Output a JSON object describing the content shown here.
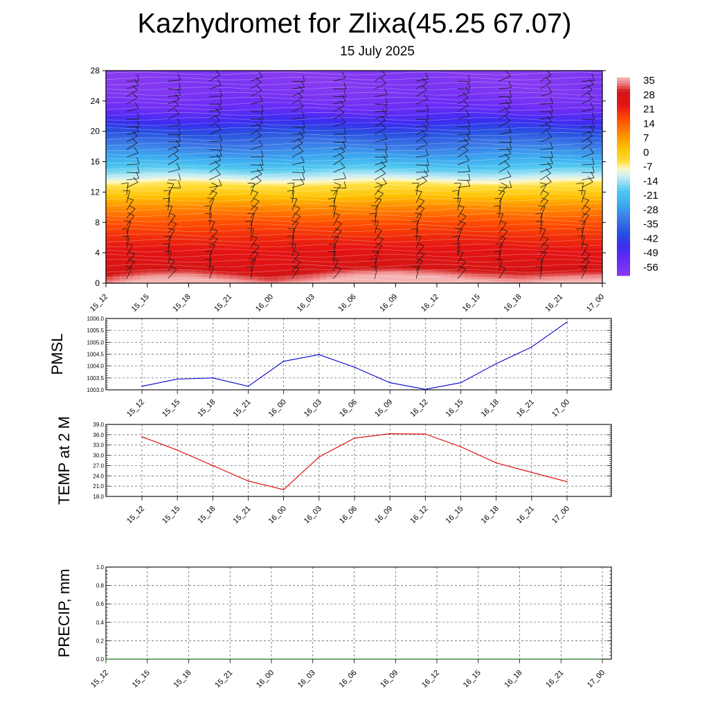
{
  "header": {
    "title": "Kazhydromet for Zlixa(45.25 67.07)",
    "subtitle": "15 July 2025"
  },
  "chart_data": [
    {
      "type": "heatmap",
      "name": "cross-section",
      "x_ticks": [
        "15_12",
        "15_15",
        "15_18",
        "15_21",
        "16_00",
        "16_03",
        "16_06",
        "16_09",
        "16_12",
        "16_15",
        "16_18",
        "16_21",
        "17_00"
      ],
      "y_ticks": [
        0,
        4,
        8,
        12,
        16,
        20,
        24,
        28
      ],
      "ylim": [
        0,
        28
      ],
      "colorbar": {
        "labels": [
          35,
          28,
          21,
          14,
          7,
          0,
          -7,
          -14,
          -21,
          -28,
          -35,
          -42,
          -49,
          -56
        ],
        "vmin": -63,
        "vmax": 35
      },
      "color_stops": [
        {
          "v": -63,
          "c": "#8a3cf0"
        },
        {
          "v": -56,
          "c": "#6a2cf5"
        },
        {
          "v": -49,
          "c": "#3c2cf0"
        },
        {
          "v": -42,
          "c": "#2850e0"
        },
        {
          "v": -35,
          "c": "#3c78e6"
        },
        {
          "v": -28,
          "c": "#3ca8f0"
        },
        {
          "v": -21,
          "c": "#50c8f0"
        },
        {
          "v": -14,
          "c": "#c8eef5"
        },
        {
          "v": -10,
          "c": "#fff8c8"
        },
        {
          "v": -7,
          "c": "#ffe040"
        },
        {
          "v": 0,
          "c": "#ffc000"
        },
        {
          "v": 7,
          "c": "#ff8c00"
        },
        {
          "v": 14,
          "c": "#ff5000"
        },
        {
          "v": 21,
          "c": "#e61414"
        },
        {
          "v": 28,
          "c": "#d21414"
        },
        {
          "v": 32,
          "c": "#ee8080"
        },
        {
          "v": 35,
          "c": "#f5b4b4"
        }
      ],
      "temperature_profile": [
        {
          "height": 0,
          "value": 32
        },
        {
          "height": 2,
          "value": 24
        },
        {
          "height": 4,
          "value": 21
        },
        {
          "height": 6,
          "value": 18
        },
        {
          "height": 8,
          "value": 14
        },
        {
          "height": 10,
          "value": 7
        },
        {
          "height": 12,
          "value": -3
        },
        {
          "height": 13.3,
          "value": -9
        },
        {
          "height": 14,
          "value": -14
        },
        {
          "height": 15,
          "value": -20
        },
        {
          "height": 16.5,
          "value": -28
        },
        {
          "height": 19,
          "value": -38
        },
        {
          "height": 21.5,
          "value": -50
        },
        {
          "height": 23,
          "value": -56
        },
        {
          "height": 25,
          "value": -60
        },
        {
          "height": 28,
          "value": -62
        }
      ],
      "surface_warm_boost": [
        0,
        6,
        8,
        4,
        0,
        3,
        9,
        12,
        10,
        5,
        2,
        4,
        6
      ]
    },
    {
      "type": "line",
      "name": "pmsl",
      "ylabel": "PMSL",
      "color": "#0000cc",
      "x": [
        "15_12",
        "15_15",
        "15_18",
        "15_21",
        "16_00",
        "16_03",
        "16_06",
        "16_09",
        "16_12",
        "16_15",
        "16_18",
        "16_21",
        "17_00"
      ],
      "values": [
        1003.15,
        1003.45,
        1003.5,
        1003.15,
        1004.2,
        1004.48,
        1003.95,
        1003.3,
        1003.02,
        1003.3,
        1004.1,
        1004.8,
        1005.85
      ],
      "ylim": [
        1003.0,
        1006.0
      ],
      "y_ticks": [
        "1003.0",
        "1003.5",
        "1004.0",
        "1004.5",
        "1005.0",
        "1005.5",
        "1006.0"
      ]
    },
    {
      "type": "line",
      "name": "temp2m",
      "ylabel": "TEMP at 2 M",
      "color": "#dd0000",
      "x": [
        "15_12",
        "15_15",
        "15_18",
        "15_21",
        "16_00",
        "16_03",
        "16_06",
        "16_09",
        "16_12",
        "16_15",
        "16_18",
        "16_21",
        "17_00"
      ],
      "values": [
        35.4,
        31.5,
        27.0,
        22.5,
        20.0,
        29.5,
        35.0,
        36.3,
        36.2,
        32.5,
        27.8,
        25.0,
        22.3
      ],
      "ylim": [
        18.0,
        39.0
      ],
      "y_ticks": [
        "18.0",
        "21.0",
        "24.0",
        "27.0",
        "30.0",
        "33.0",
        "36.0",
        "39.0"
      ]
    },
    {
      "type": "line",
      "name": "precip",
      "ylabel": "PRECIP, mm",
      "color": "#006400",
      "x": [
        "15_12",
        "15_15",
        "15_18",
        "15_21",
        "16_00",
        "16_03",
        "16_06",
        "16_09",
        "16_12",
        "16_15",
        "16_18",
        "16_21",
        "17_00"
      ],
      "values": [
        0,
        0,
        0,
        0,
        0,
        0,
        0,
        0,
        0,
        0,
        0,
        0,
        0
      ],
      "ylim": [
        0.0,
        1.0
      ],
      "y_ticks": [
        "0.0",
        "0.2",
        "0.4",
        "0.6",
        "0.8",
        "1.0"
      ]
    }
  ]
}
